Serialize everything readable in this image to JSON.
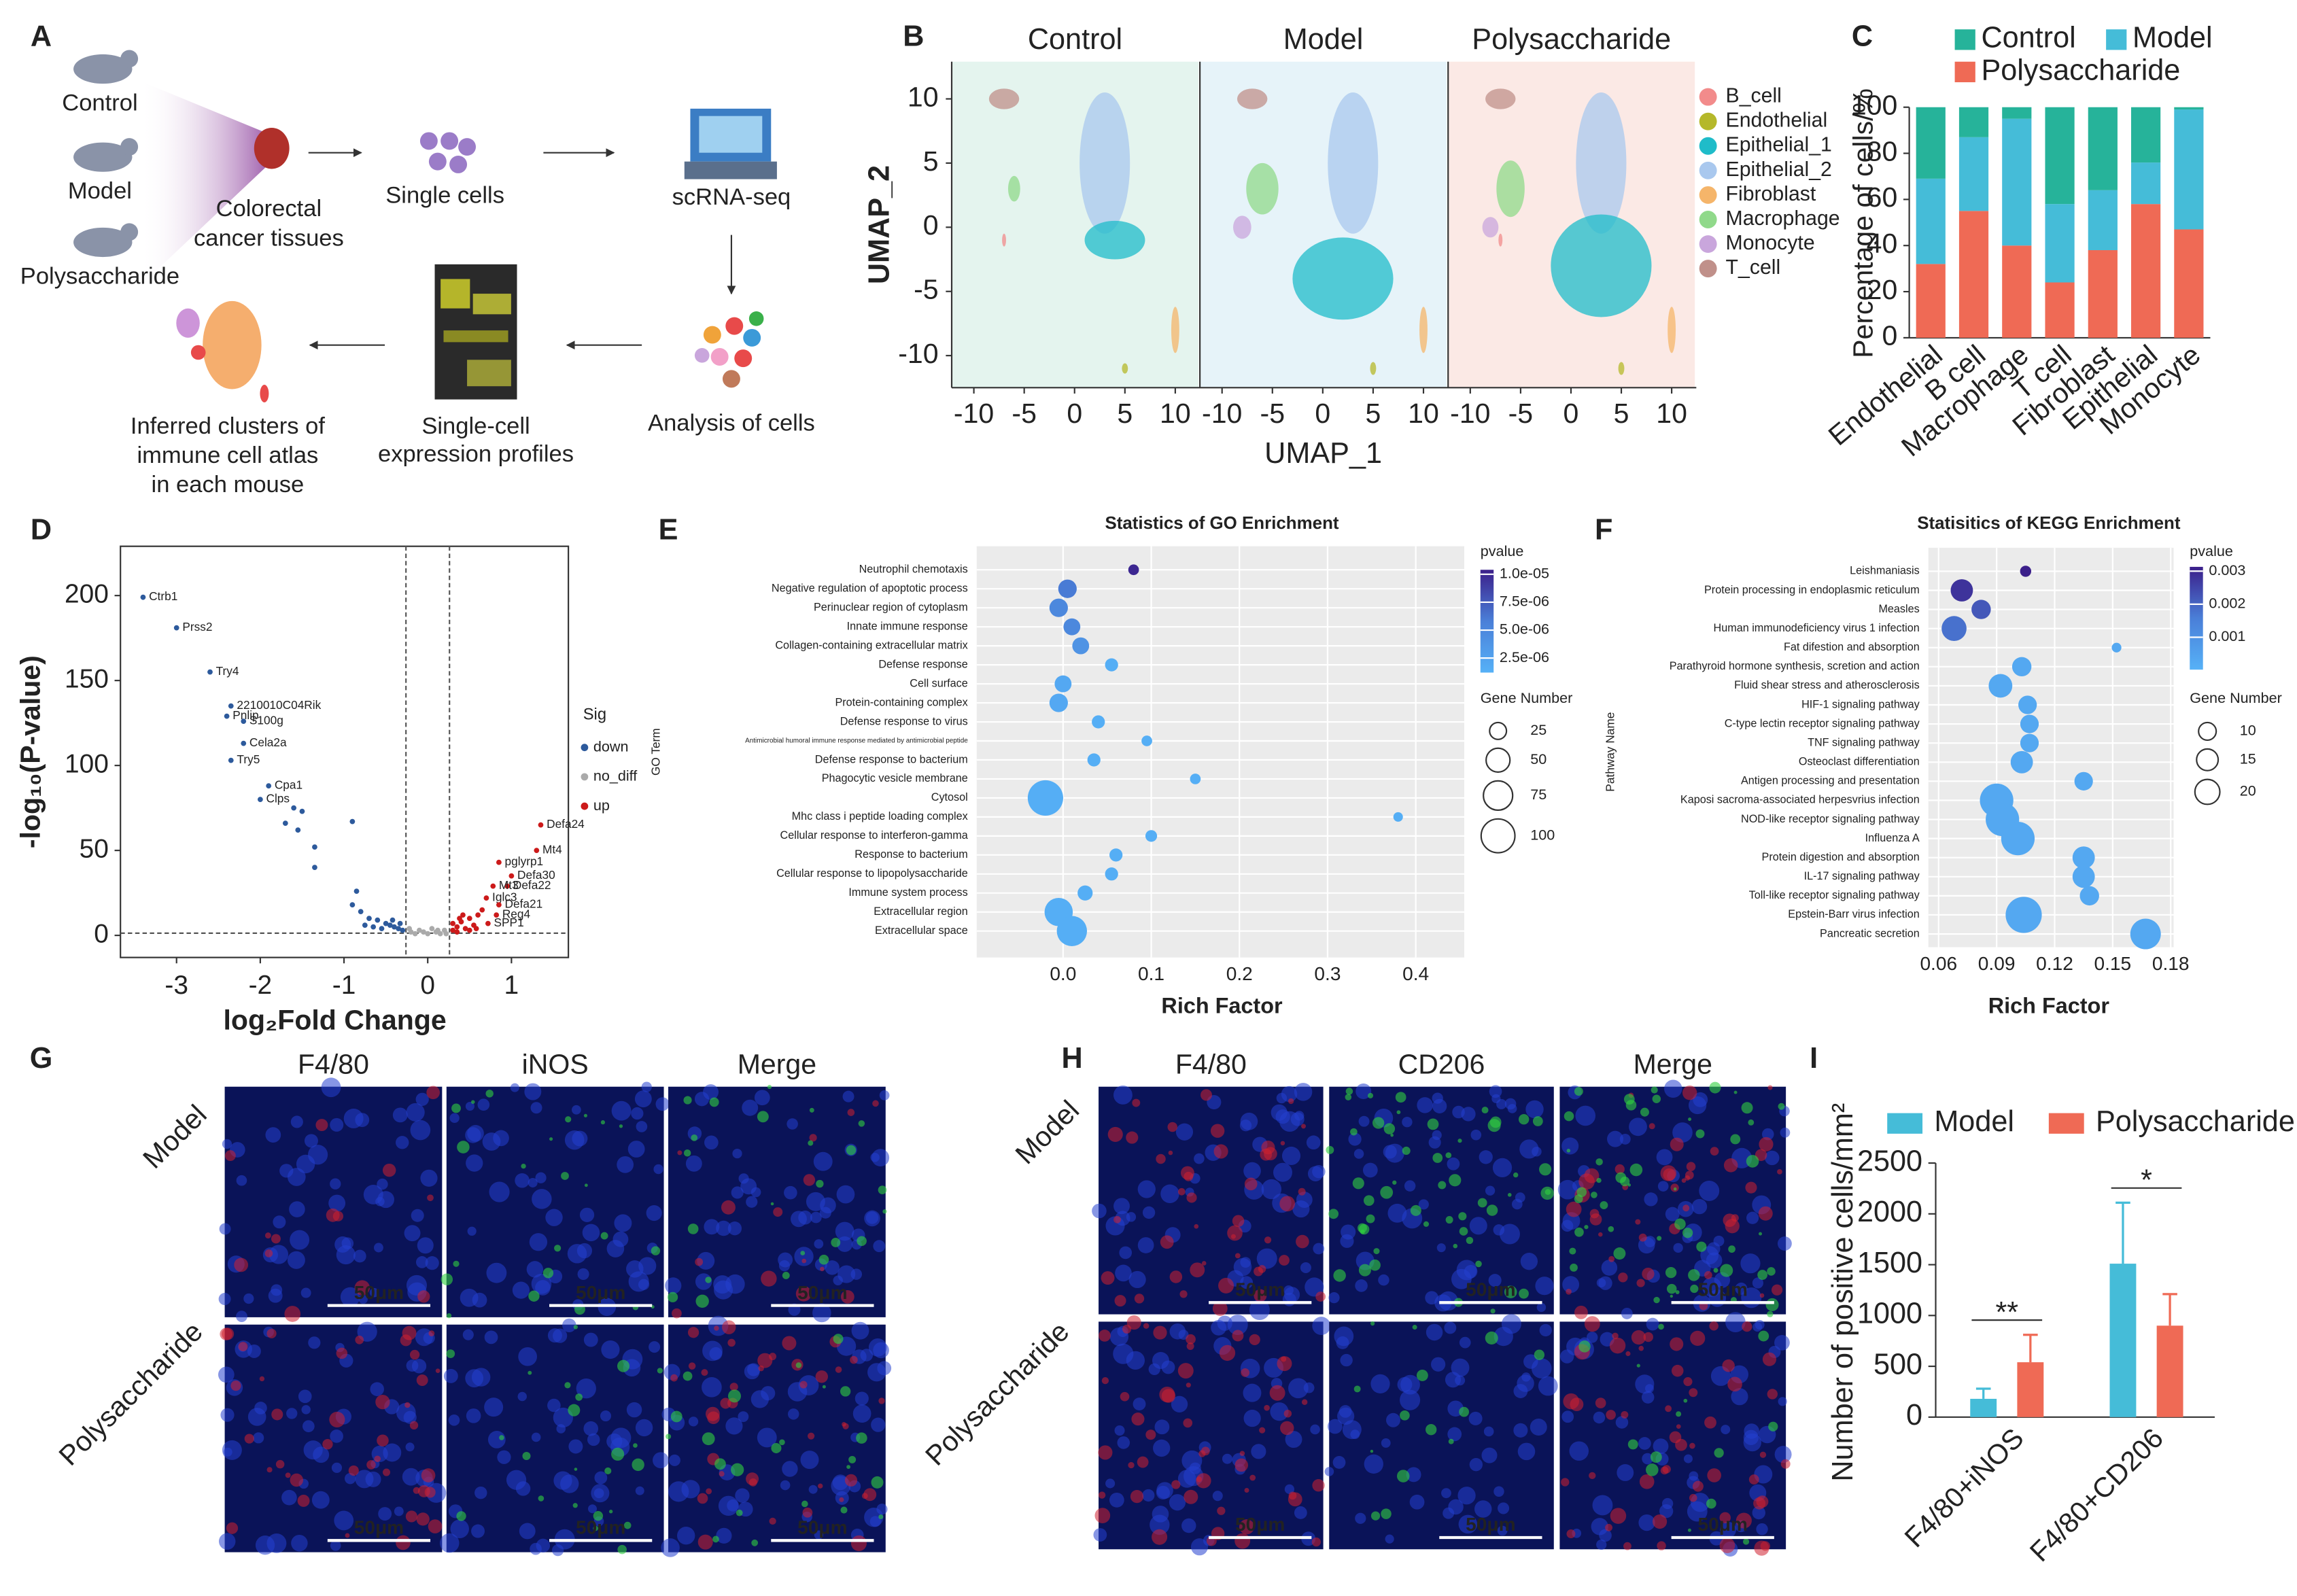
{
  "panels": {
    "labels": [
      "A",
      "B",
      "C",
      "D",
      "E",
      "F",
      "G",
      "H",
      "I"
    ]
  },
  "panel_a": {
    "groups": [
      "Control",
      "Model",
      "Polysaccharide"
    ],
    "tissue": [
      "Colorectal",
      "cancer tissues"
    ],
    "single_cells": "Single cells",
    "sequencing": "scRNA-seq",
    "analysis": "Analysis of cells",
    "profiles": [
      "Single-cell",
      "expression profiles"
    ],
    "atlas": [
      "Inferred clusters of",
      "immune cell atlas",
      "in each mouse"
    ]
  },
  "panel_g": {
    "columns": [
      "F4/80",
      "iNOS",
      "Merge"
    ],
    "column_colors": [
      "#e8503a",
      "#1fb39a",
      "#45bcd8"
    ],
    "rows": [
      "Model",
      "Polysaccharide"
    ],
    "scale": "50μm"
  },
  "panel_h": {
    "columns": [
      "F4/80",
      "CD206",
      "Merge"
    ],
    "column_colors": [
      "#e8503a",
      "#1fb39a",
      "#45bcd8"
    ],
    "rows": [
      "Model",
      "Polysaccharide"
    ],
    "scale": "50μm"
  },
  "chart_data": [
    {
      "type": "scatter",
      "facets": [
        "Control",
        "Model",
        "Polysaccharide"
      ],
      "facet_colors": [
        "#2ab39a",
        "#45bcd8",
        "#ef6a55"
      ],
      "facet_backgrounds": [
        "#e4f4ee",
        "#e6f3f9",
        "#fbe9e5"
      ],
      "xlabel": "UMAP_1",
      "ylabel": "UMAP_2",
      "xlim": [
        -12.2,
        12.3
      ],
      "ylim": [
        -12.5,
        12.9
      ],
      "xticks": [
        -10,
        -5,
        0,
        5,
        10
      ],
      "yticks": [
        -10,
        -5,
        0,
        5,
        10
      ],
      "series": [
        {
          "name": "B_cell",
          "color": "#f28b8b"
        },
        {
          "name": "Endothelial",
          "color": "#b5b82a"
        },
        {
          "name": "Epithelial_1",
          "color": "#1fbcc9"
        },
        {
          "name": "Epithelial_2",
          "color": "#a9c8ee"
        },
        {
          "name": "Fibroblast",
          "color": "#f5b56a"
        },
        {
          "name": "Macrophage",
          "color": "#90d98a"
        },
        {
          "name": "Monocyte",
          "color": "#c9a6dc"
        },
        {
          "name": "T_cell",
          "color": "#c0908a"
        }
      ]
    },
    {
      "type": "bar",
      "stacked": true,
      "ylabel": "Percentage of cells/%",
      "categories": [
        "Endothelial",
        "B cell",
        "Macrophage",
        "T cell",
        "Fibroblast",
        "Epithelial",
        "Monocyte"
      ],
      "series": [
        {
          "name": "Control",
          "color": "#26b39a",
          "values": [
            31,
            13,
            5,
            42,
            36,
            24,
            1
          ]
        },
        {
          "name": "Model",
          "color": "#45bcd8",
          "values": [
            37,
            32,
            55,
            34,
            26,
            18,
            52
          ]
        },
        {
          "name": "Polysaccharide",
          "color": "#ef6a55",
          "values": [
            32,
            55,
            40,
            24,
            38,
            58,
            47
          ]
        }
      ],
      "ylim": [
        0,
        100
      ],
      "yticks": [
        0,
        20,
        40,
        60,
        80,
        100
      ]
    },
    {
      "type": "scatter",
      "xlabel": "log₂Fold Change",
      "ylabel": "-log₁₀(P-value)",
      "legend_title": "Sig",
      "xlim": [
        -3.67,
        1.68
      ],
      "ylim": [
        -13,
        229
      ],
      "xticks": [
        -3,
        -2,
        -1,
        0,
        1
      ],
      "yticks": [
        0,
        50,
        100,
        150,
        200
      ],
      "vlines": [
        -0.26,
        0.26
      ],
      "hline": 1.3,
      "series": [
        {
          "name": "down",
          "color": "#2d5a9c",
          "x": [
            -3.4,
            -3.0,
            -2.6,
            -2.35,
            -2.4,
            -2.2,
            -2.2,
            -2.35,
            -1.9,
            -2.0,
            -1.6,
            -1.5,
            -1.7,
            -1.55,
            -1.35,
            -0.9,
            -1.35,
            -0.85,
            -0.9,
            -0.8,
            -0.7,
            -0.6,
            -0.5,
            -0.45,
            -0.4,
            -0.35,
            -0.3,
            -0.55,
            -0.65,
            -0.75,
            -0.42,
            -0.33
          ],
          "values": [
            199,
            181,
            155,
            135,
            129,
            126,
            113,
            103,
            88,
            80,
            75,
            73,
            66,
            62,
            52,
            67,
            40,
            26,
            18,
            14,
            10,
            9,
            7,
            6,
            5,
            4,
            3,
            4,
            5,
            6,
            9,
            7
          ],
          "labels": [
            "Ctrb1",
            "Prss2",
            "Try4",
            "2210010C04Rik",
            "Pnlip",
            "S100g",
            "Cela2a",
            "Try5",
            "Cpa1",
            "Clps",
            null,
            null,
            null,
            null,
            null,
            null,
            null,
            null,
            null,
            null,
            null,
            null,
            null,
            null,
            null,
            null,
            null,
            null,
            null,
            null,
            null,
            null
          ]
        },
        {
          "name": "no_diff",
          "color": "#aaaaaa",
          "x": [
            -0.2,
            -0.1,
            0,
            0.1,
            0.2,
            -0.15,
            0.05,
            0.15,
            -0.05,
            0.22,
            -0.22,
            0.12
          ],
          "values": [
            2,
            3,
            1,
            2,
            3,
            1,
            4,
            1,
            2,
            1,
            4,
            3
          ]
        },
        {
          "name": "up",
          "color": "#cc1a1a",
          "x": [
            1.35,
            1.3,
            0.85,
            1.0,
            0.95,
            0.78,
            0.7,
            0.85,
            0.82,
            0.72,
            0.3,
            0.35,
            0.4,
            0.45,
            0.5,
            0.55,
            0.6,
            0.35,
            0.42,
            0.65,
            0.5,
            0.3,
            0.38,
            0.58
          ],
          "values": [
            65,
            50,
            43,
            35,
            29,
            29,
            22,
            18,
            12,
            7,
            3,
            5,
            8,
            4,
            10,
            6,
            12,
            2,
            12,
            15,
            3,
            7,
            10,
            4
          ],
          "labels": [
            "Defa24",
            "Mt4",
            "pglyrp1",
            "Defa30",
            "Defa22",
            "Mt3",
            "Iglc3",
            "Defa21",
            "Reg4",
            "SPP1",
            null,
            null,
            null,
            null,
            null,
            null,
            null,
            null,
            null,
            null,
            null,
            null,
            null,
            null
          ]
        }
      ]
    },
    {
      "type": "bubble",
      "title": "Statistics of GO Enrichment",
      "xlabel": "Rich Factor",
      "ylabel": "GO Term",
      "categories": [
        "Neutrophil chemotaxis",
        "Negative regulation of apoptotic process",
        "Perinuclear region of cytoplasm",
        "Innate immune response",
        "Collagen-containing extracellular matrix",
        "Defense response",
        "Cell surface",
        "Protein-containing complex",
        "Defense response to virus",
        "Antimicrobial humoral immune response mediated by antimicrobial peptide",
        "Defense response to bacterium",
        "Phagocytic vesicle membrane",
        "Cytosol",
        "Mhc class i peptide loading complex",
        "Cellular response to interferon-gamma",
        "Response to bacterium",
        "Cellular response to lipopolysaccharide",
        "Immune system process",
        "Extracellular region",
        "Extracellular space"
      ],
      "values": [
        0.08,
        0.005,
        -0.005,
        0.01,
        0.02,
        0.055,
        0.0,
        -0.005,
        0.04,
        0.095,
        0.035,
        0.15,
        -0.02,
        0.38,
        0.1,
        0.06,
        0.055,
        0.025,
        -0.005,
        0.01
      ],
      "sizes": [
        10,
        30,
        30,
        25,
        25,
        15,
        25,
        30,
        15,
        10,
        15,
        10,
        110,
        8,
        12,
        15,
        15,
        20,
        70,
        80
      ],
      "pvalues": [
        1e-05,
        6e-06,
        5e-06,
        5e-06,
        4e-06,
        1.5e-06,
        2e-06,
        2e-06,
        1.5e-06,
        1.5e-06,
        1.5e-06,
        1.5e-06,
        1.5e-06,
        1.5e-06,
        1.5e-06,
        1.5e-06,
        1.5e-06,
        1.5e-06,
        1.5e-06,
        1.5e-06
      ],
      "xlim": [
        -0.098,
        0.455
      ],
      "xticks": [
        {
          "value": 0,
          "label": "0.0"
        },
        0.1,
        0.2,
        0.3,
        0.4
      ],
      "color_title": "pvalue",
      "clim": [
        1.2e-06,
        1.04e-05
      ],
      "cticks": [
        {
          "value": 1e-05,
          "label": "1.0e-05"
        },
        {
          "value": 7.5e-06,
          "label": "7.5e-06"
        },
        {
          "value": 5e-06,
          "label": "5.0e-06"
        },
        {
          "value": 2.5e-06,
          "label": "2.5e-06"
        }
      ],
      "size_title": "Gene Number",
      "size_legend": [
        25,
        50,
        75,
        100
      ]
    },
    {
      "type": "bubble",
      "title": "Statisitics of KEGG Enrichment",
      "xlabel": "Rich Factor",
      "ylabel": "Pathway Name",
      "categories": [
        "Leishmaniasis",
        "Protein processing in endoplasmic reticulum",
        "Measles",
        "Human immunodeficiency virus 1 infection",
        "Fat difestion and absorption",
        "Parathyroid hormone synthesis, scretion and action",
        "Fluid shear stress and atherosclerosis",
        "HIF-1 signaling pathway",
        "C-type lectin receptor signaling pathway",
        "TNF signaling pathway",
        "Osteoclast differentiation",
        "Antigen processing and presentation",
        "Kaposi sacroma-associated herpesvrius infection",
        "NOD-like receptor signaling pathway",
        "Influenza A",
        "Protein digestion and absorption",
        "IL-17 signaling pathway",
        "Toll-like receptor signaling pathway",
        "Epstein-Barr virus infection",
        "Pancreatic secretion"
      ],
      "values": [
        0.105,
        0.072,
        0.082,
        0.068,
        0.152,
        0.103,
        0.092,
        0.106,
        0.107,
        0.107,
        0.103,
        0.135,
        0.09,
        0.093,
        0.101,
        0.135,
        0.135,
        0.138,
        0.104,
        0.167
      ],
      "sizes": [
        4,
        16,
        12,
        20,
        3,
        12,
        18,
        11,
        11,
        11,
        16,
        11,
        36,
        36,
        36,
        16,
        16,
        12,
        42,
        30
      ],
      "pvalues": [
        0.0032,
        0.0028,
        0.0022,
        0.0018,
        0.0003,
        0.0003,
        0.0003,
        0.0003,
        0.0003,
        0.0003,
        0.0003,
        0.0003,
        0.0003,
        0.0003,
        0.0003,
        0.0003,
        0.0003,
        0.0003,
        0.0003,
        0.0003
      ],
      "xlim": [
        0.0547,
        0.1815
      ],
      "xticks": [
        0.06,
        0.09,
        0.12,
        0.15,
        0.18
      ],
      "color_title": "pvalue",
      "clim": [
        2e-05,
        0.00313
      ],
      "cticks": [
        0.003,
        0.002,
        0.001
      ],
      "size_title": "Gene Number",
      "size_legend": [
        10,
        15,
        20
      ]
    },
    {
      "type": "bar",
      "ylabel": "Number of positive cells/mm²",
      "categories": [
        "F4/80+iNOS",
        "F4/80+CD206"
      ],
      "series": [
        {
          "name": "Model",
          "color": "#45bcd8",
          "values": [
            180,
            1510
          ],
          "errors": [
            100,
            600
          ]
        },
        {
          "name": "Polysaccharide",
          "color": "#ef6a55",
          "values": [
            540,
            900
          ],
          "errors": [
            270,
            310
          ]
        }
      ],
      "annotations": [
        "**",
        "*"
      ],
      "ylim": [
        0,
        2500
      ],
      "yticks": [
        0,
        500,
        1000,
        1500,
        2000,
        2500
      ]
    }
  ]
}
